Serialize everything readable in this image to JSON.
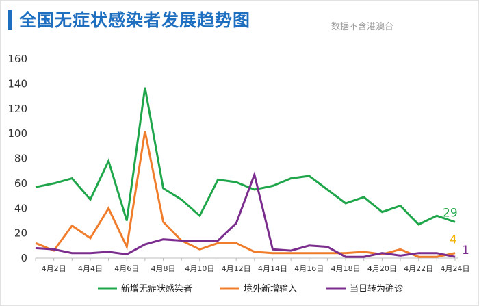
{
  "title": "全国无症状感染者发展趋势图",
  "subtitle": "数据不含港澳台",
  "chart_data": {
    "type": "line",
    "title": "全国无症状感染者发展趋势图",
    "subtitle": "数据不含港澳台",
    "xlabel": "",
    "ylabel": "",
    "ylim": [
      0,
      160
    ],
    "yticks": [
      0,
      20,
      40,
      60,
      80,
      100,
      120,
      140,
      160
    ],
    "x": [
      "4月1日",
      "4月2日",
      "4月3日",
      "4月4日",
      "4月5日",
      "4月6日",
      "4月7日",
      "4月8日",
      "4月9日",
      "4月10日",
      "4月11日",
      "4月12日",
      "4月13日",
      "4月14日",
      "4月15日",
      "4月16日",
      "4月17日",
      "4月18日",
      "4月19日",
      "4月20日",
      "4月21日",
      "4月22日",
      "4月23日",
      "4月24日"
    ],
    "xtick_labels": [
      "4月2日",
      "4月4日",
      "4月6日",
      "4月8日",
      "4月10日",
      "4月12日",
      "4月14日",
      "4月16日",
      "4月18日",
      "4月20日",
      "4月22日",
      "4月24日"
    ],
    "grid": false,
    "legend_position": "bottom",
    "series": [
      {
        "name": "新增无症状感染者",
        "color": "#1fa64a",
        "values": [
          57,
          60,
          64,
          47,
          78,
          30,
          137,
          56,
          47,
          34,
          63,
          61,
          55,
          58,
          64,
          66,
          55,
          44,
          49,
          37,
          42,
          27,
          34,
          29
        ],
        "end_label": "29"
      },
      {
        "name": "境外新增输入",
        "color": "#f07d2c",
        "values": [
          12,
          6,
          26,
          16,
          40,
          9,
          102,
          29,
          14,
          7,
          12,
          12,
          5,
          4,
          4,
          4,
          4,
          4,
          5,
          3,
          7,
          1,
          1,
          4
        ],
        "end_label": "4"
      },
      {
        "name": "当日转为确诊",
        "color": "#7b2d8e",
        "values": [
          8,
          7,
          4,
          4,
          5,
          3,
          11,
          15,
          14,
          14,
          14,
          28,
          67,
          7,
          6,
          10,
          9,
          1,
          1,
          4,
          2,
          4,
          4,
          1
        ],
        "end_label": "1"
      }
    ],
    "end_label_colors": [
      "#1fa64a",
      "#f5b400",
      "#7b2d8e"
    ]
  }
}
